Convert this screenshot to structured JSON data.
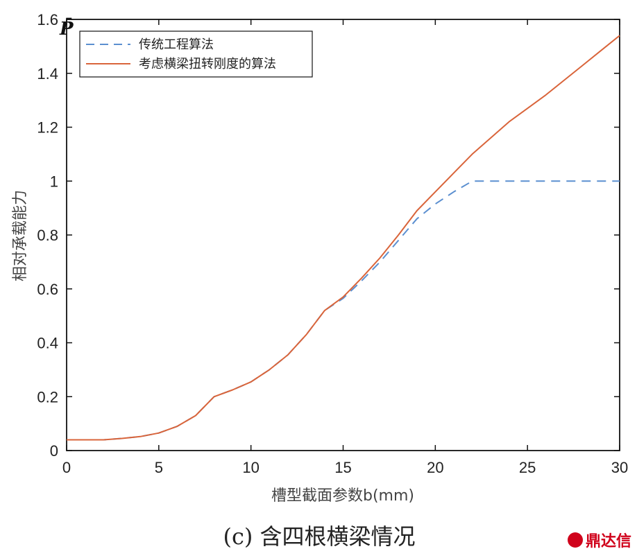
{
  "chart_data": {
    "type": "line",
    "title": "",
    "xlabel": "槽型截面参数b(mm)",
    "ylabel": "相对承载能力",
    "ylabel_symbol": "P̄",
    "xlim": [
      0,
      30
    ],
    "ylim": [
      0,
      1.6
    ],
    "xticks": [
      "0",
      "5",
      "10",
      "15",
      "20",
      "25",
      "30"
    ],
    "yticks": [
      "0",
      "0.2",
      "0.4",
      "0.6",
      "0.8",
      "1",
      "1.2",
      "1.4",
      "1.6"
    ],
    "grid": false,
    "legend_position": "top-left",
    "series": [
      {
        "name": "传统工程算法",
        "color": "#5b8fd0",
        "style": "dashed",
        "x": [
          0,
          2,
          3,
          4,
          5,
          6,
          7,
          8,
          9,
          10,
          11,
          12,
          13,
          14,
          15,
          16,
          17,
          18,
          19,
          20,
          21,
          22,
          23,
          24,
          25,
          26,
          27,
          28,
          29,
          30
        ],
        "y": [
          0.04,
          0.04,
          0.045,
          0.052,
          0.065,
          0.09,
          0.13,
          0.2,
          0.225,
          0.255,
          0.3,
          0.355,
          0.43,
          0.52,
          0.565,
          0.63,
          0.7,
          0.78,
          0.86,
          0.915,
          0.96,
          1.0,
          1.0,
          1.0,
          1.0,
          1.0,
          1.0,
          1.0,
          1.0,
          1.0
        ]
      },
      {
        "name": "考虑横梁扭转刚度的算法",
        "color": "#d9643a",
        "style": "solid",
        "x": [
          0,
          2,
          3,
          4,
          5,
          6,
          7,
          8,
          9,
          10,
          11,
          12,
          13,
          14,
          15,
          16,
          17,
          18,
          19,
          20,
          21,
          22,
          23,
          24,
          25,
          26,
          27,
          28,
          29,
          30
        ],
        "y": [
          0.04,
          0.04,
          0.045,
          0.052,
          0.065,
          0.09,
          0.13,
          0.2,
          0.225,
          0.255,
          0.3,
          0.355,
          0.43,
          0.52,
          0.57,
          0.64,
          0.715,
          0.8,
          0.89,
          0.96,
          1.03,
          1.1,
          1.16,
          1.22,
          1.27,
          1.32,
          1.375,
          1.43,
          1.485,
          1.54
        ]
      }
    ]
  },
  "caption": "(c)  含四根横梁情况",
  "watermark": "鼎达信"
}
